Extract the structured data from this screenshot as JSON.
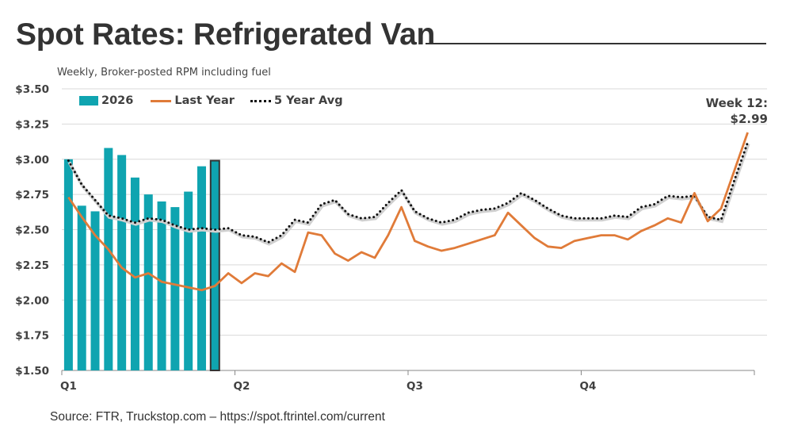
{
  "header": {
    "title": "Spot Rates: Refrigerated Van",
    "subtitle": "Weekly, Broker-posted RPM including fuel"
  },
  "footer": {
    "source": "Source: FTR, Truckstop.com – https://spot.ftrintel.com/current"
  },
  "annotation": {
    "line1": "Week 12:",
    "line2": "$2.99"
  },
  "colors": {
    "bars": "#0fa4b0",
    "last_year": "#e07b39",
    "five_year_avg": "#111111",
    "highlight_outline": "#333333"
  },
  "chart_data": {
    "type": "bar+line",
    "ylim": [
      1.5,
      3.5
    ],
    "y_ticks": [
      "$1.50",
      "$1.75",
      "$2.00",
      "$2.25",
      "$2.50",
      "$2.75",
      "$3.00",
      "$3.25",
      "$3.50"
    ],
    "y_tick_values": [
      1.5,
      1.75,
      2.0,
      2.25,
      2.5,
      2.75,
      3.0,
      3.25,
      3.5
    ],
    "x_tick_labels": [
      "Q1",
      "Q2",
      "Q3",
      "Q4"
    ],
    "weeks": 52,
    "grid": true,
    "legend": "top-left",
    "series": [
      {
        "name": "2026",
        "type": "bar",
        "values": [
          3.0,
          2.67,
          2.63,
          3.08,
          3.03,
          2.87,
          2.75,
          2.7,
          2.66,
          2.77,
          2.95,
          2.99
        ],
        "highlight_week": 12
      },
      {
        "name": "Last Year",
        "type": "line",
        "values": [
          2.73,
          2.59,
          2.46,
          2.36,
          2.23,
          2.16,
          2.19,
          2.13,
          2.11,
          2.09,
          2.07,
          2.1,
          2.19,
          2.12,
          2.19,
          2.17,
          2.26,
          2.2,
          2.48,
          2.46,
          2.33,
          2.28,
          2.34,
          2.3,
          2.46,
          2.66,
          2.42,
          2.38,
          2.35,
          2.37,
          2.4,
          2.43,
          2.46,
          2.62,
          2.53,
          2.44,
          2.38,
          2.37,
          2.42,
          2.44,
          2.46,
          2.46,
          2.43,
          2.49,
          2.53,
          2.58,
          2.55,
          2.76,
          2.56,
          2.65,
          2.92,
          3.19
        ]
      },
      {
        "name": "5 Year Avg",
        "type": "line",
        "style": "dotted",
        "values": [
          2.99,
          2.82,
          2.71,
          2.6,
          2.58,
          2.55,
          2.58,
          2.57,
          2.53,
          2.5,
          2.51,
          2.5,
          2.51,
          2.46,
          2.45,
          2.41,
          2.46,
          2.57,
          2.55,
          2.68,
          2.71,
          2.61,
          2.58,
          2.59,
          2.69,
          2.78,
          2.63,
          2.58,
          2.55,
          2.57,
          2.62,
          2.64,
          2.65,
          2.69,
          2.76,
          2.71,
          2.65,
          2.6,
          2.58,
          2.58,
          2.58,
          2.6,
          2.59,
          2.66,
          2.68,
          2.74,
          2.73,
          2.74,
          2.59,
          2.57,
          2.85,
          3.12
        ]
      }
    ]
  }
}
